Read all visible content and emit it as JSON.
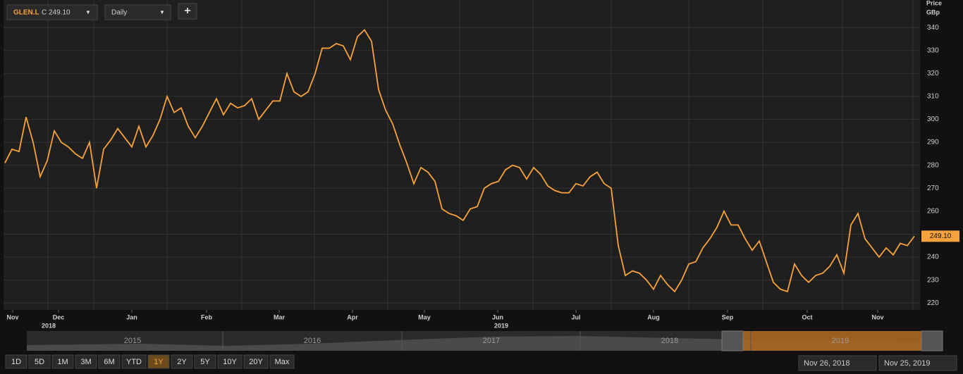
{
  "chart_data": {
    "type": "line",
    "symbol": "GLEN.L",
    "close_prefix": "C",
    "close_label": "249.10",
    "interval": "Daily",
    "axis_title": "Price",
    "axis_unit": "GBp",
    "color": "#f7a23a",
    "values": [
      281,
      287,
      286,
      301,
      290,
      275,
      282,
      295,
      290,
      288,
      285,
      283,
      290,
      270,
      287,
      291,
      296,
      292,
      288,
      297,
      288,
      293,
      300,
      310,
      303,
      305,
      297,
      292,
      297,
      303,
      309,
      302,
      307,
      305,
      306,
      309,
      300,
      304,
      308,
      308,
      320,
      312,
      310,
      312,
      320,
      331,
      331,
      333,
      332,
      326,
      336,
      339,
      334,
      313,
      304,
      298,
      289,
      281,
      272,
      279,
      277,
      273,
      261,
      259,
      258,
      256,
      261,
      262,
      270,
      272,
      273,
      278,
      280,
      279,
      274,
      279,
      276,
      271,
      269,
      268,
      268,
      272,
      271,
      275,
      277,
      272,
      270,
      245,
      232,
      234,
      233,
      230,
      226,
      232,
      228,
      225,
      230,
      237,
      238,
      244,
      248,
      253,
      260,
      254,
      254,
      248,
      243,
      247,
      238,
      229,
      226,
      225,
      237,
      232,
      229,
      232,
      233,
      236,
      241,
      233,
      254,
      259,
      248,
      244,
      240,
      244,
      241,
      246,
      245,
      249.1
    ],
    "last_price": {
      "value": 249.1,
      "label": "249.10"
    },
    "xlim": [
      0,
      129
    ],
    "xticks": [
      {
        "value": 1.1,
        "label": "Nov"
      },
      {
        "value": 7.6,
        "label": "Dec"
      },
      {
        "value": 18,
        "label": "Jan"
      },
      {
        "value": 28.6,
        "label": "Feb"
      },
      {
        "value": 38.9,
        "label": "Mar"
      },
      {
        "value": 49.3,
        "label": "Apr"
      },
      {
        "value": 59.5,
        "label": "May"
      },
      {
        "value": 69.9,
        "label": "Jun"
      },
      {
        "value": 81,
        "label": "Jul"
      },
      {
        "value": 92,
        "label": "Aug"
      },
      {
        "value": 102.5,
        "label": "Sep"
      },
      {
        "value": 113.8,
        "label": "Oct"
      },
      {
        "value": 123.8,
        "label": "Nov"
      }
    ],
    "year_ticks": [
      {
        "value": 6.2,
        "label": "2018"
      },
      {
        "value": 70.4,
        "label": "2019"
      }
    ],
    "ylim": [
      217,
      352
    ],
    "yticks": [
      220,
      230,
      240,
      250,
      260,
      270,
      280,
      290,
      300,
      310,
      320,
      330,
      340
    ],
    "grid": true,
    "navigator_years": [
      "2015",
      "2016",
      "2017",
      "2018",
      "2019"
    ],
    "range_buttons": [
      "1D",
      "5D",
      "1M",
      "3M",
      "6M",
      "YTD",
      "1Y",
      "2Y",
      "5Y",
      "10Y",
      "20Y",
      "Max"
    ],
    "active_range": "1Y",
    "start_date": "Nov 26, 2018",
    "end_date": "Nov 25, 2019"
  }
}
